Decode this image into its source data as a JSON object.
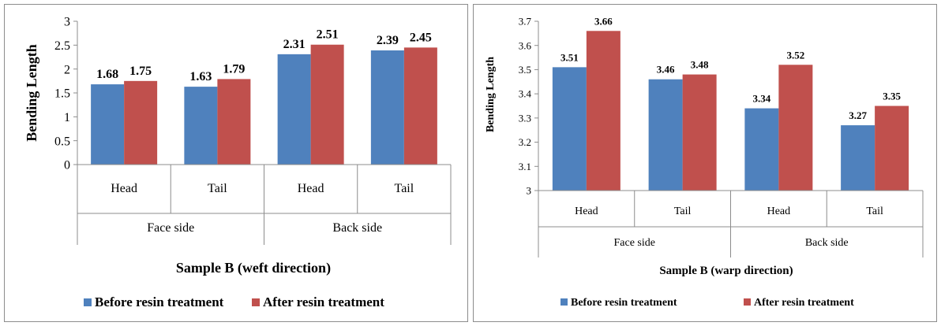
{
  "chart_data": [
    {
      "type": "bar",
      "title": "",
      "ylabel": "Bending Length",
      "xlabel": "Sample B (weft direction)",
      "ylim": [
        0,
        3
      ],
      "yticks": [
        "0",
        "0.5",
        "1",
        "1.5",
        "2",
        "2.5",
        "3"
      ],
      "categories": [
        "Head",
        "Tail",
        "Head",
        "Tail"
      ],
      "groups": [
        "Face side",
        "Back side"
      ],
      "series": [
        {
          "name": "Before resin treatment",
          "color": "#4f81bd",
          "values": [
            1.68,
            1.63,
            2.31,
            2.39
          ],
          "labels": [
            "1.68",
            "1.63",
            "2.31",
            "2.39"
          ]
        },
        {
          "name": "After resin treatment",
          "color": "#c0504d",
          "values": [
            1.75,
            1.79,
            2.51,
            2.45
          ],
          "labels": [
            "1.75",
            "1.79",
            "2.51",
            "2.45"
          ]
        }
      ],
      "grid": false,
      "legend_position": "bottom"
    },
    {
      "type": "bar",
      "title": "",
      "ylabel": "Bending Length",
      "xlabel": "Sample B (warp direction)",
      "ylim": [
        3,
        3.7
      ],
      "yticks": [
        "3",
        "3.1",
        "3.2",
        "3.3",
        "3.4",
        "3.5",
        "3.6",
        "3.7"
      ],
      "categories": [
        "Head",
        "Tail",
        "Head",
        "Tail"
      ],
      "groups": [
        "Face side",
        "Back side"
      ],
      "series": [
        {
          "name": "Before resin treatment",
          "color": "#4f81bd",
          "values": [
            3.51,
            3.46,
            3.34,
            3.27
          ],
          "labels": [
            "3.51",
            "3.46",
            "3.34",
            "3.27"
          ]
        },
        {
          "name": "After resin treatment",
          "color": "#c0504d",
          "values": [
            3.66,
            3.48,
            3.52,
            3.35
          ],
          "labels": [
            "3.66",
            "3.48",
            "3.52",
            "3.35"
          ]
        }
      ],
      "grid": false,
      "legend_position": "bottom"
    }
  ]
}
